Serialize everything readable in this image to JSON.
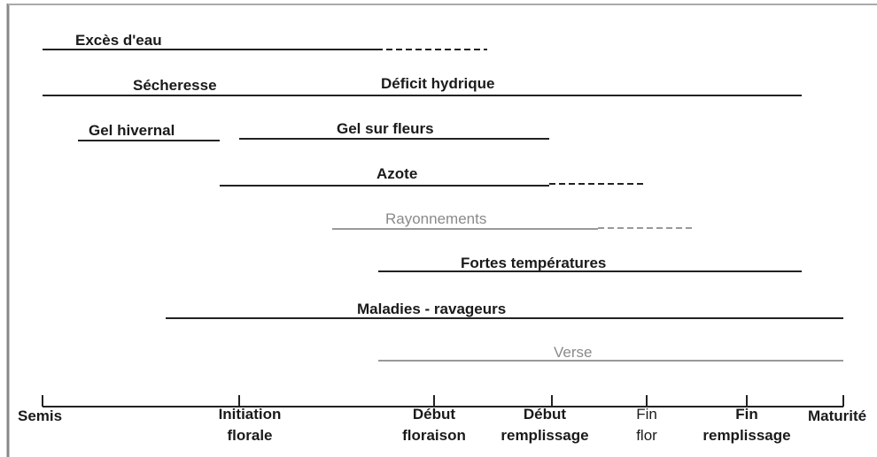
{
  "rows": [
    {
      "labels": [
        "Excès d'eau"
      ]
    },
    {
      "labels": [
        "Sécheresse",
        "Déficit hydrique"
      ]
    },
    {
      "labels": [
        "Gel hivernal",
        "Gel sur fleurs"
      ]
    },
    {
      "labels": [
        "Azote"
      ]
    },
    {
      "labels": [
        "Rayonnements"
      ]
    },
    {
      "labels": [
        "Fortes températures"
      ]
    },
    {
      "labels": [
        "Maladies - ravageurs"
      ]
    },
    {
      "labels": [
        "Verse"
      ]
    }
  ],
  "stages": [
    {
      "lines": [
        "Semis"
      ]
    },
    {
      "lines": [
        "Initiation",
        "florale"
      ]
    },
    {
      "lines": [
        "Début",
        "floraison"
      ]
    },
    {
      "lines": [
        "Début",
        "remplissage"
      ]
    },
    {
      "lines": [
        "Fin",
        "flor"
      ]
    },
    {
      "lines": [
        "Fin",
        "remplissage"
      ]
    },
    {
      "lines": [
        "Maturité"
      ]
    }
  ]
}
